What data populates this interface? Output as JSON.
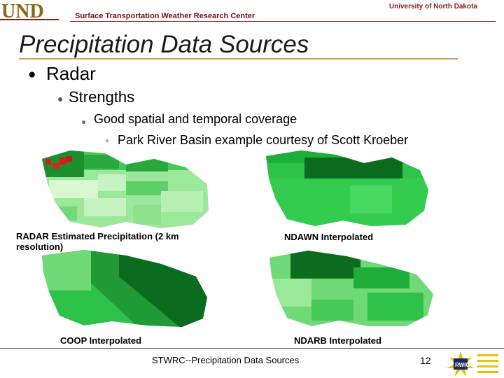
{
  "header": {
    "logo_text": "UND",
    "university": "University of North Dakota",
    "center": "Surface Transportation Weather Research Center"
  },
  "slide": {
    "title": "Precipitation Data Sources",
    "bullets": [
      {
        "level": 1,
        "text": "Radar"
      },
      {
        "level": 2,
        "text": "Strengths"
      },
      {
        "level": 3,
        "text": "Good spatial and temporal coverage"
      },
      {
        "level": 4,
        "text": "Park River Basin example courtesy of Scott Kroeber"
      }
    ],
    "figures": [
      {
        "caption": "RADAR Estimated Precipitation (2 km resolution)"
      },
      {
        "caption": "NDAWN Interpolated"
      },
      {
        "caption": "COOP Interpolated"
      },
      {
        "caption": "NDARB Interpolated"
      }
    ]
  },
  "footer": {
    "text": "STWRC--Precipitation Data Sources",
    "page": "12",
    "logo_text": "RWIC"
  },
  "colors": {
    "accent_rule": "#c9a15a",
    "header_red": "#8b1a1a",
    "green_dark": "#0b6b1e",
    "green_mid": "#1fae3a",
    "green_light": "#9be89b"
  }
}
